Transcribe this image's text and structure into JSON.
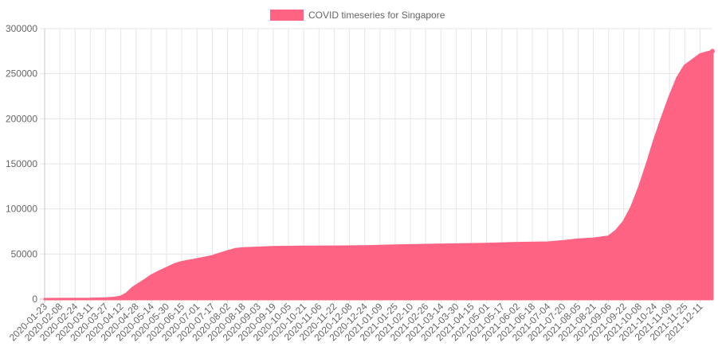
{
  "chart_data": {
    "type": "area",
    "legend": {
      "label": "COVID timeseries for Singapore",
      "position": "top",
      "color": "#ff6384"
    },
    "x_tick_labels": [
      "2020-01-23",
      "2020-02-08",
      "2020-02-24",
      "2020-03-11",
      "2020-03-27",
      "2020-04-12",
      "2020-04-28",
      "2020-05-14",
      "2020-05-30",
      "2020-06-15",
      "2020-07-01",
      "2020-07-17",
      "2020-08-02",
      "2020-08-18",
      "2020-09-03",
      "2020-09-19",
      "2020-10-05",
      "2020-10-21",
      "2020-11-06",
      "2020-11-22",
      "2020-12-08",
      "2020-12-24",
      "2021-01-09",
      "2021-01-25",
      "2021-02-10",
      "2021-02-26",
      "2021-03-14",
      "2021-03-30",
      "2021-04-15",
      "2021-05-01",
      "2021-05-17",
      "2021-06-02",
      "2021-06-18",
      "2021-07-04",
      "2021-07-20",
      "2021-08-05",
      "2021-08-21",
      "2021-09-06",
      "2021-09-22",
      "2021-10-08",
      "2021-10-24",
      "2021-11-09",
      "2021-11-25",
      "2021-12-11"
    ],
    "y_tick_labels": [
      "0",
      "50000",
      "100000",
      "150000",
      "200000",
      "250000",
      "300000"
    ],
    "ylim": [
      0,
      300000
    ],
    "grid": true,
    "series": [
      {
        "name": "COVID timeseries for Singapore",
        "color": "#ff6384",
        "points": [
          [
            "2020-01-23",
            1
          ],
          [
            "2020-02-24",
            89
          ],
          [
            "2020-03-11",
            178
          ],
          [
            "2020-03-27",
            732
          ],
          [
            "2020-04-05",
            1309
          ],
          [
            "2020-04-12",
            2532
          ],
          [
            "2020-04-18",
            5992
          ],
          [
            "2020-04-24",
            12075
          ],
          [
            "2020-04-28",
            14951
          ],
          [
            "2020-05-07",
            20939
          ],
          [
            "2020-05-14",
            26098
          ],
          [
            "2020-05-22",
            30426
          ],
          [
            "2020-05-30",
            34366
          ],
          [
            "2020-06-07",
            38296
          ],
          [
            "2020-06-15",
            40969
          ],
          [
            "2020-07-01",
            44122
          ],
          [
            "2020-07-17",
            47453
          ],
          [
            "2020-07-25",
            50369
          ],
          [
            "2020-08-02",
            52825
          ],
          [
            "2020-08-10",
            55292
          ],
          [
            "2020-08-18",
            56266
          ],
          [
            "2020-09-03",
            56948
          ],
          [
            "2020-09-19",
            57576
          ],
          [
            "2020-10-21",
            57941
          ],
          [
            "2020-11-22",
            58160
          ],
          [
            "2020-12-24",
            58495
          ],
          [
            "2021-01-25",
            59352
          ],
          [
            "2021-02-26",
            59979
          ],
          [
            "2021-03-30",
            60505
          ],
          [
            "2021-05-01",
            61145
          ],
          [
            "2021-06-02",
            62158
          ],
          [
            "2021-07-04",
            62645
          ],
          [
            "2021-07-20",
            64054
          ],
          [
            "2021-08-05",
            65890
          ],
          [
            "2021-08-21",
            66928
          ],
          [
            "2021-09-06",
            69233
          ],
          [
            "2021-09-14",
            75783
          ],
          [
            "2021-09-22",
            85953
          ],
          [
            "2021-09-30",
            101786
          ],
          [
            "2021-10-08",
            123690
          ],
          [
            "2021-10-16",
            148800
          ],
          [
            "2021-10-24",
            176423
          ],
          [
            "2021-11-01",
            200844
          ],
          [
            "2021-11-09",
            224200
          ],
          [
            "2021-11-17",
            245000
          ],
          [
            "2021-11-25",
            258785
          ],
          [
            "2021-12-03",
            265000
          ],
          [
            "2021-12-11",
            271297
          ],
          [
            "2021-12-18",
            273500
          ],
          [
            "2021-12-24",
            275000
          ]
        ]
      }
    ]
  }
}
